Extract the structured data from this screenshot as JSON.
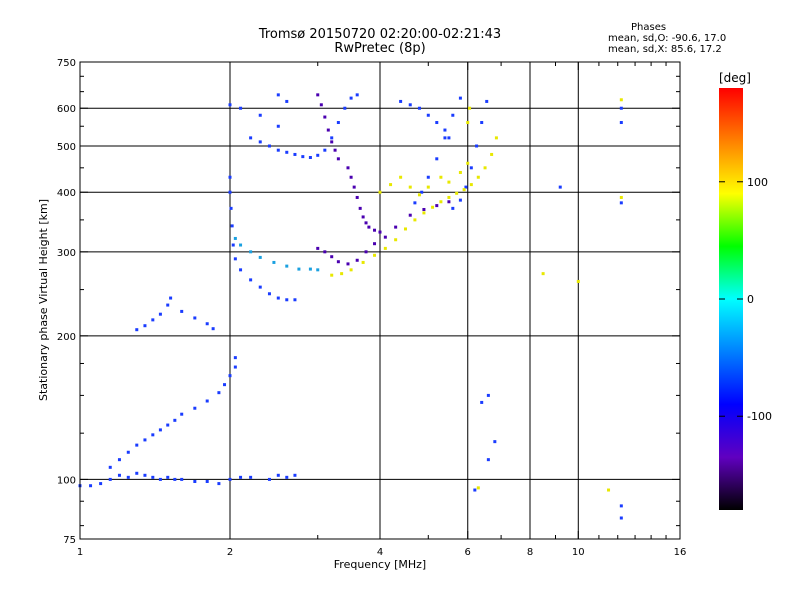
{
  "header": {
    "title_line1": "Tromsø 20150720 02:20:00-02:21:43",
    "title_line2": "RwPretec (8p)",
    "stats_heading": "Phases",
    "stats_o": "mean, sd,O: -90.6, 17.0",
    "stats_x": "mean, sd,X: 85.6, 17.2"
  },
  "colors": {
    "colorbar_stops": [
      "#ff0000",
      "#ff8000",
      "#ffff00",
      "#00ff00",
      "#00ffff",
      "#0080ff",
      "#0000ff",
      "#6000c0",
      "#000000"
    ],
    "trace_blue": "#1a3cff",
    "trace_cyan": "#1aa0e0",
    "trace_yellow": "#e8e800",
    "trace_purple": "#4a00b0"
  },
  "chart_data": {
    "type": "scatter",
    "title": "Tromsø 20150720 02:20:00-02:21:43",
    "subtitle": "RwPretec (8p)",
    "xlabel": "Frequency [MHz]",
    "ylabel": "Stationary phase Virtual Height [km]",
    "x_scale": "log",
    "y_scale": "log",
    "xlim": [
      1,
      16
    ],
    "ylim": [
      75,
      750
    ],
    "x_ticks": [
      1,
      2,
      4,
      6,
      8,
      10,
      16
    ],
    "y_ticks": [
      75,
      100,
      200,
      300,
      400,
      500,
      600,
      750
    ],
    "grid": true,
    "colorbar": {
      "label": "[deg]",
      "range": [
        -180,
        180
      ],
      "ticks": [
        100,
        0,
        -100
      ]
    },
    "series": [
      {
        "phase": "blue",
        "points": [
          [
            1.0,
            97
          ],
          [
            1.05,
            97
          ],
          [
            1.1,
            98
          ],
          [
            1.15,
            100
          ],
          [
            1.2,
            102
          ],
          [
            1.25,
            101
          ],
          [
            1.3,
            103
          ],
          [
            1.35,
            102
          ],
          [
            1.4,
            101
          ],
          [
            1.45,
            100
          ],
          [
            1.5,
            101
          ],
          [
            1.55,
            100
          ],
          [
            1.6,
            100
          ],
          [
            1.7,
            99
          ],
          [
            1.8,
            99
          ],
          [
            1.9,
            98
          ],
          [
            2.0,
            100
          ],
          [
            2.1,
            101
          ],
          [
            2.2,
            101
          ],
          [
            2.4,
            100
          ],
          [
            2.5,
            102
          ],
          [
            2.6,
            101
          ],
          [
            2.7,
            102
          ]
        ]
      },
      {
        "phase": "blue",
        "points": [
          [
            1.15,
            106
          ],
          [
            1.2,
            110
          ],
          [
            1.25,
            114
          ],
          [
            1.3,
            118
          ],
          [
            1.35,
            121
          ],
          [
            1.4,
            124
          ],
          [
            1.45,
            127
          ],
          [
            1.5,
            130
          ],
          [
            1.55,
            133
          ],
          [
            1.6,
            137
          ],
          [
            1.7,
            141
          ],
          [
            1.8,
            146
          ],
          [
            1.9,
            152
          ],
          [
            1.95,
            158
          ],
          [
            2.0,
            165
          ],
          [
            2.05,
            172
          ],
          [
            2.05,
            180
          ]
        ]
      },
      {
        "phase": "blue",
        "points": [
          [
            1.3,
            206
          ],
          [
            1.35,
            210
          ],
          [
            1.4,
            216
          ],
          [
            1.45,
            222
          ],
          [
            1.5,
            232
          ],
          [
            1.52,
            240
          ],
          [
            1.6,
            225
          ],
          [
            1.7,
            218
          ],
          [
            1.8,
            212
          ],
          [
            1.85,
            207
          ]
        ]
      },
      {
        "phase": "blue",
        "points": [
          [
            2.0,
            430
          ],
          [
            2.0,
            400
          ],
          [
            2.01,
            370
          ],
          [
            2.02,
            340
          ],
          [
            2.03,
            310
          ],
          [
            2.05,
            290
          ],
          [
            2.1,
            275
          ],
          [
            2.2,
            262
          ],
          [
            2.3,
            253
          ],
          [
            2.4,
            245
          ],
          [
            2.5,
            240
          ],
          [
            2.6,
            238
          ],
          [
            2.7,
            238
          ]
        ]
      },
      {
        "phase": "cyan",
        "points": [
          [
            2.05,
            320
          ],
          [
            2.1,
            310
          ],
          [
            2.2,
            300
          ],
          [
            2.3,
            292
          ],
          [
            2.45,
            285
          ],
          [
            2.6,
            280
          ],
          [
            2.75,
            276
          ],
          [
            2.9,
            276
          ],
          [
            3.0,
            275
          ]
        ]
      },
      {
        "phase": "blue",
        "points": [
          [
            2.2,
            520
          ],
          [
            2.3,
            510
          ],
          [
            2.4,
            500
          ],
          [
            2.5,
            490
          ],
          [
            2.6,
            485
          ],
          [
            2.7,
            480
          ],
          [
            2.8,
            475
          ],
          [
            2.9,
            473
          ],
          [
            3.0,
            478
          ],
          [
            3.1,
            490
          ],
          [
            3.2,
            520
          ],
          [
            3.3,
            560
          ],
          [
            3.4,
            600
          ],
          [
            3.5,
            630
          ],
          [
            3.6,
            640
          ]
        ]
      },
      {
        "phase": "purple",
        "points": [
          [
            3.0,
            640
          ],
          [
            3.05,
            610
          ],
          [
            3.1,
            575
          ],
          [
            3.15,
            540
          ],
          [
            3.2,
            510
          ],
          [
            3.25,
            490
          ],
          [
            3.3,
            470
          ]
        ]
      },
      {
        "phase": "purple",
        "points": [
          [
            3.45,
            450
          ],
          [
            3.5,
            430
          ],
          [
            3.55,
            410
          ],
          [
            3.6,
            390
          ],
          [
            3.65,
            370
          ],
          [
            3.7,
            355
          ],
          [
            3.75,
            345
          ],
          [
            3.8,
            338
          ],
          [
            3.9,
            333
          ],
          [
            4.0,
            330
          ]
        ]
      },
      {
        "phase": "purple",
        "points": [
          [
            3.0,
            305
          ],
          [
            3.1,
            300
          ],
          [
            3.2,
            293
          ],
          [
            3.3,
            286
          ],
          [
            3.45,
            283
          ],
          [
            3.6,
            288
          ],
          [
            3.75,
            300
          ],
          [
            3.9,
            312
          ],
          [
            4.1,
            322
          ],
          [
            4.3,
            338
          ],
          [
            4.6,
            358
          ],
          [
            4.9,
            368
          ],
          [
            5.2,
            375
          ],
          [
            5.5,
            382
          ]
        ]
      },
      {
        "phase": "blue",
        "points": [
          [
            4.7,
            380
          ],
          [
            4.85,
            400
          ],
          [
            5.0,
            430
          ],
          [
            5.2,
            470
          ],
          [
            5.4,
            520
          ],
          [
            5.6,
            580
          ],
          [
            5.8,
            630
          ]
        ]
      },
      {
        "phase": "blue",
        "points": [
          [
            5.6,
            370
          ],
          [
            5.8,
            385
          ],
          [
            5.95,
            410
          ],
          [
            6.1,
            450
          ],
          [
            6.25,
            500
          ],
          [
            6.4,
            560
          ],
          [
            6.55,
            620
          ]
        ]
      },
      {
        "phase": "yellow",
        "points": [
          [
            3.2,
            268
          ],
          [
            3.35,
            270
          ],
          [
            3.5,
            275
          ],
          [
            3.7,
            285
          ],
          [
            3.9,
            295
          ],
          [
            4.1,
            305
          ],
          [
            4.3,
            318
          ],
          [
            4.5,
            335
          ],
          [
            4.7,
            350
          ],
          [
            4.9,
            362
          ],
          [
            5.1,
            372
          ],
          [
            5.3,
            382
          ],
          [
            5.5,
            390
          ],
          [
            5.7,
            398
          ],
          [
            5.9,
            405
          ],
          [
            6.1,
            415
          ],
          [
            6.3,
            430
          ],
          [
            6.5,
            450
          ],
          [
            6.7,
            480
          ],
          [
            6.85,
            520
          ]
        ]
      },
      {
        "phase": "yellow",
        "points": [
          [
            4.0,
            400
          ],
          [
            4.2,
            415
          ],
          [
            4.4,
            430
          ],
          [
            4.6,
            410
          ],
          [
            4.8,
            395
          ],
          [
            5.0,
            410
          ],
          [
            5.3,
            430
          ],
          [
            5.5,
            420
          ],
          [
            5.8,
            440
          ],
          [
            6.0,
            460
          ],
          [
            6.0,
            560
          ],
          [
            6.05,
            600
          ]
        ]
      },
      {
        "phase": "blue",
        "points": [
          [
            4.4,
            620
          ],
          [
            4.6,
            610
          ],
          [
            4.8,
            600
          ],
          [
            5.0,
            580
          ],
          [
            5.2,
            560
          ],
          [
            5.4,
            540
          ],
          [
            5.5,
            520
          ]
        ]
      },
      {
        "phase": "blue",
        "points": [
          [
            2.5,
            550
          ],
          [
            2.3,
            580
          ],
          [
            2.1,
            600
          ],
          [
            2.0,
            610
          ],
          [
            2.5,
            640
          ],
          [
            2.6,
            620
          ]
        ]
      },
      {
        "phase": "blue",
        "points": [
          [
            12.2,
            600
          ],
          [
            12.2,
            560
          ],
          [
            12.2,
            380
          ],
          [
            9.2,
            410
          ],
          [
            6.4,
            145
          ],
          [
            6.6,
            150
          ],
          [
            6.8,
            120
          ],
          [
            6.6,
            110
          ],
          [
            6.2,
            95
          ],
          [
            12.2,
            83
          ],
          [
            12.2,
            88
          ]
        ]
      },
      {
        "phase": "yellow",
        "points": [
          [
            6.3,
            96
          ],
          [
            12.2,
            625
          ],
          [
            12.2,
            390
          ],
          [
            11.5,
            95
          ],
          [
            10.0,
            260
          ],
          [
            8.5,
            270
          ]
        ]
      }
    ]
  }
}
